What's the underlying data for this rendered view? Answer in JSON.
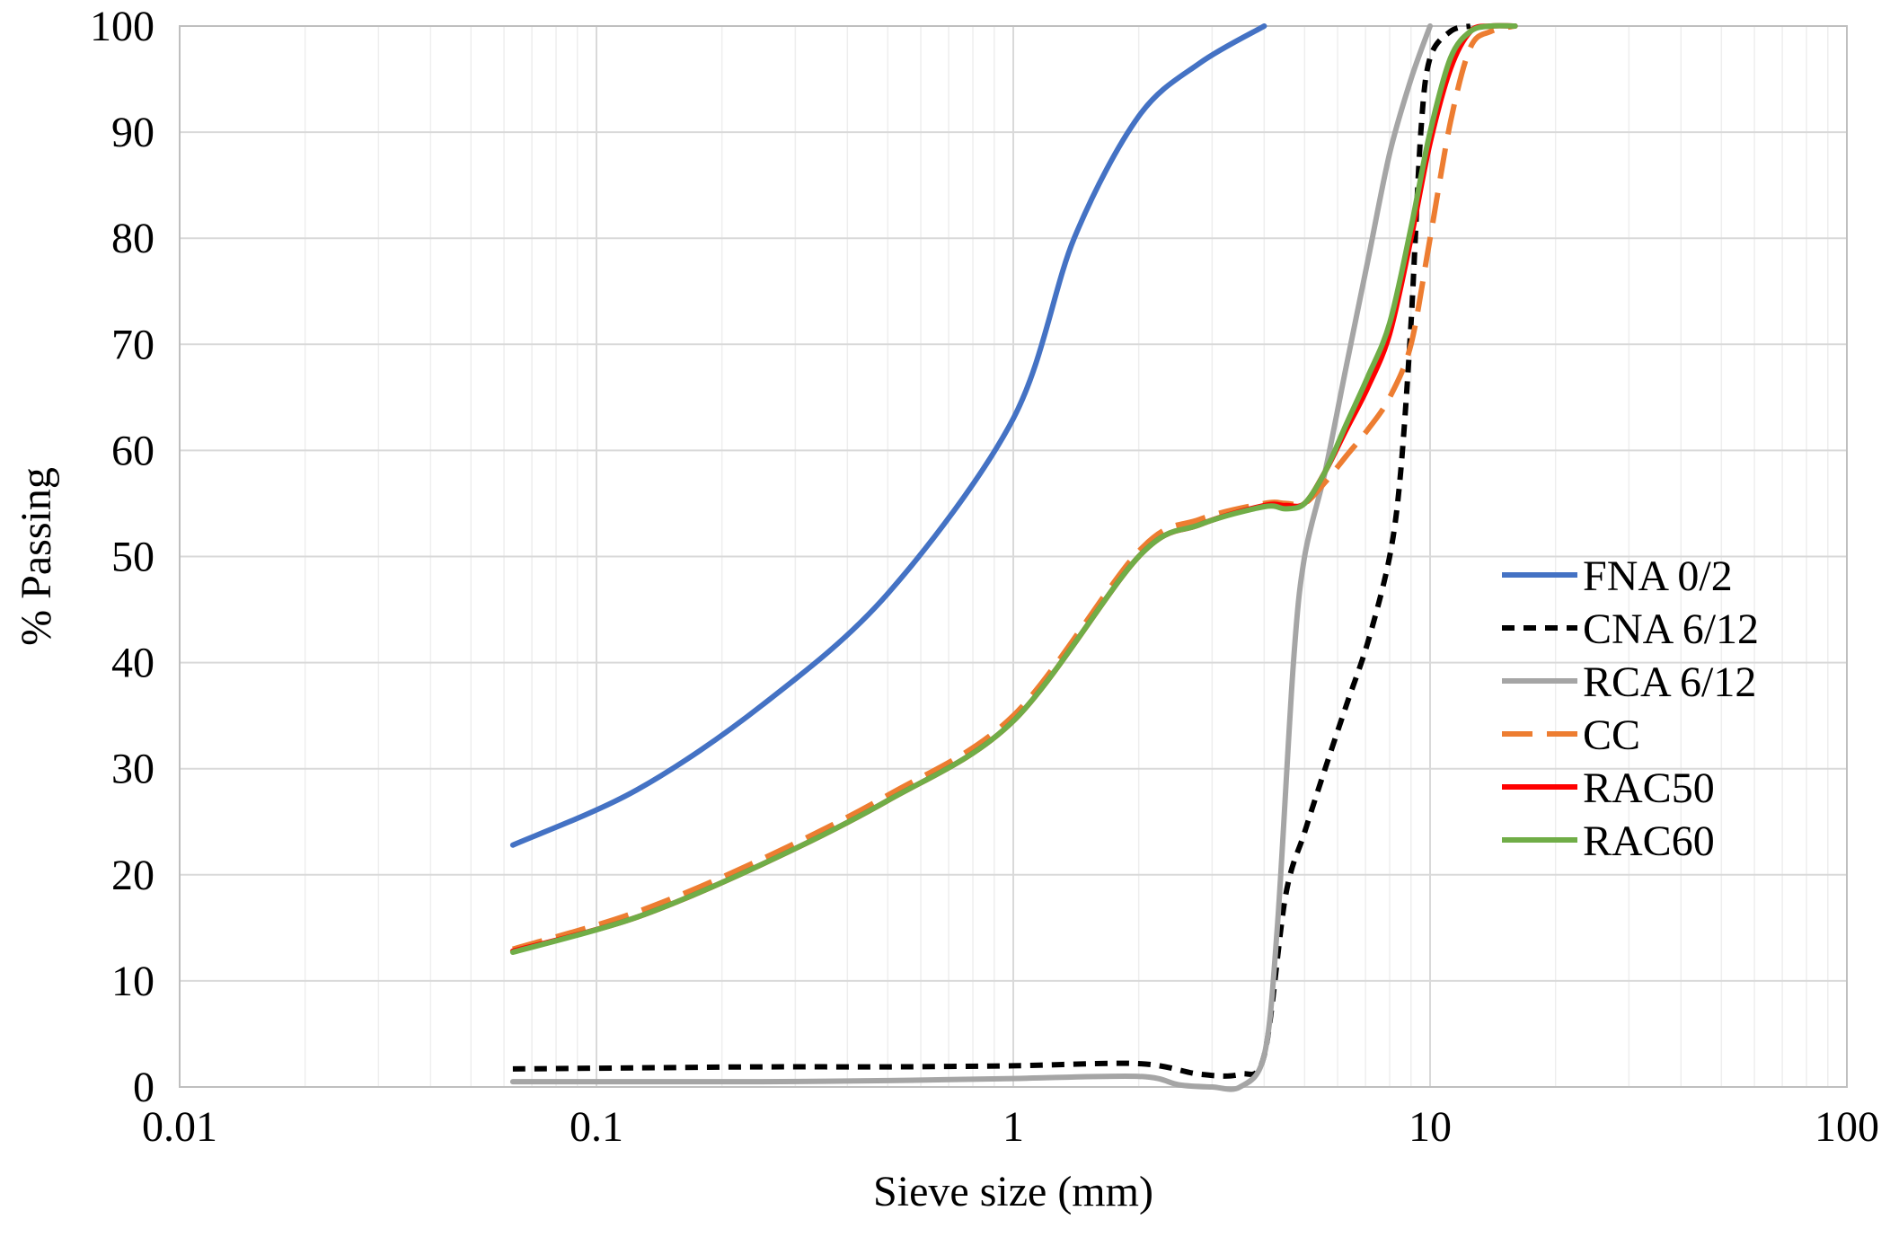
{
  "chart_data": {
    "type": "line",
    "title": "",
    "xlabel": "Sieve size (mm)",
    "ylabel": "% Passing",
    "xscale": "log",
    "xlim": [
      0.01,
      100
    ],
    "ylim": [
      0,
      100
    ],
    "x_ticks": [
      0.01,
      0.1,
      1,
      10,
      100
    ],
    "x_tick_labels": [
      "0.01",
      "0.1",
      "1",
      "10",
      "100"
    ],
    "y_ticks": [
      0,
      10,
      20,
      30,
      40,
      50,
      60,
      70,
      80,
      90,
      100
    ],
    "y_tick_labels": [
      "0",
      "10",
      "20",
      "30",
      "40",
      "50",
      "60",
      "70",
      "80",
      "90",
      "100"
    ],
    "grid": true,
    "legend_position": "right",
    "series": [
      {
        "name": "FNA 0/2",
        "color": "#4472c4",
        "dash": "solid",
        "x": [
          0.063,
          0.125,
          0.25,
          0.5,
          1,
          1.4,
          2,
          2.8,
          4
        ],
        "y": [
          22.8,
          28,
          36,
          46.5,
          63,
          80,
          91.5,
          96.5,
          100
        ]
      },
      {
        "name": "CNA 6/12",
        "color": "#000000",
        "dash": "short-dash",
        "x": [
          0.063,
          0.125,
          0.25,
          0.5,
          1,
          2,
          2.8,
          3.5,
          4,
          4.5,
          5,
          5.6,
          6.3,
          7.1,
          8,
          8.5,
          9,
          9.5,
          10,
          11.2,
          12.5
        ],
        "y": [
          1.7,
          1.8,
          1.9,
          1.9,
          2,
          2.2,
          1.2,
          1.2,
          3,
          18,
          24,
          30,
          36,
          42,
          50,
          58,
          72,
          90,
          97,
          99.5,
          100
        ]
      },
      {
        "name": "RCA 6/12",
        "color": "#a5a5a5",
        "dash": "solid",
        "x": [
          0.063,
          0.125,
          0.25,
          0.5,
          1,
          2,
          2.5,
          3,
          3.5,
          4,
          4.3,
          4.7,
          5,
          5.6,
          6.3,
          7.1,
          8,
          9,
          10
        ],
        "y": [
          0.5,
          0.5,
          0.5,
          0.6,
          0.8,
          1,
          0.2,
          0,
          0,
          3,
          15,
          40,
          50,
          58,
          68,
          78,
          88,
          95,
          100
        ]
      },
      {
        "name": "CC",
        "color": "#ed7d31",
        "dash": "long-dash",
        "x": [
          0.063,
          0.125,
          0.25,
          0.5,
          1,
          2,
          2.8,
          4,
          4.5,
          5,
          5.6,
          6.3,
          7.1,
          8,
          9,
          10,
          11.2,
          12.5,
          14,
          16
        ],
        "y": [
          13,
          16.5,
          21.5,
          27.5,
          35,
          50.5,
          53.5,
          55,
          55,
          55,
          57,
          59.5,
          62,
          65,
          70,
          80,
          91,
          98,
          99.5,
          100
        ]
      },
      {
        "name": "RAC50",
        "color": "#ff0000",
        "dash": "solid",
        "x": [
          0.063,
          0.125,
          0.25,
          0.5,
          1,
          2,
          2.8,
          4,
          4.5,
          5,
          5.6,
          6.3,
          7.1,
          8,
          9,
          10,
          11.2,
          12.5,
          14,
          16
        ],
        "y": [
          12.8,
          16,
          21,
          27,
          34.5,
          50,
          53,
          54.8,
          54.8,
          55,
          58,
          62,
          66,
          71,
          80,
          89,
          96,
          99.5,
          100,
          100
        ]
      },
      {
        "name": "RAC60",
        "color": "#70ad47",
        "dash": "solid",
        "x": [
          0.063,
          0.125,
          0.25,
          0.5,
          1,
          2,
          2.8,
          4,
          4.5,
          5,
          5.6,
          6.3,
          7.1,
          8,
          9,
          10,
          11.2,
          12.5,
          14,
          16
        ],
        "y": [
          12.7,
          16,
          21,
          27,
          34.5,
          50,
          53,
          54.7,
          54.5,
          55,
          58,
          62.5,
          67,
          72,
          81,
          90,
          97,
          99.5,
          100,
          100
        ]
      }
    ]
  }
}
